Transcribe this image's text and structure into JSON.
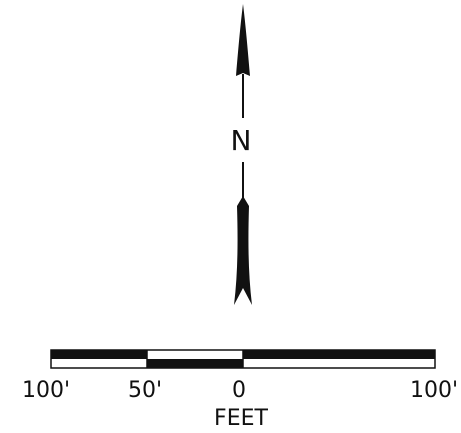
{
  "north_arrow": {
    "letter": "N"
  },
  "scale_bar": {
    "units": "FEET",
    "ticks": [
      "100'",
      "50'",
      "0",
      "100'"
    ],
    "segments": [
      {
        "from": -100,
        "to": -50,
        "fill": "checker-top-black"
      },
      {
        "from": -50,
        "to": 0,
        "fill": "checker-top-white"
      },
      {
        "from": 0,
        "to": 100,
        "fill": "checker-top-black"
      }
    ]
  },
  "colors": {
    "ink": "#111111",
    "paper": "#ffffff"
  }
}
